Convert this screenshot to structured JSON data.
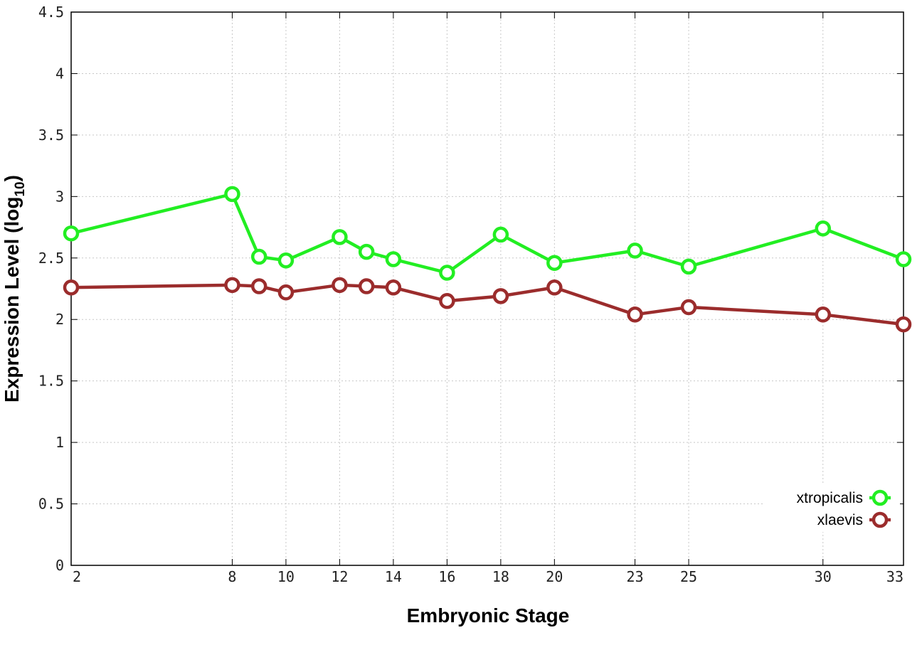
{
  "chart_data": {
    "type": "line",
    "title": "",
    "xlabel": "Embryonic Stage",
    "ylabel_main": "Expression Level (log",
    "ylabel_sub": "10",
    "ylabel_close": ")",
    "xlim": [
      2,
      33
    ],
    "ylim": [
      0,
      4.5
    ],
    "x_ticks": [
      2,
      8,
      10,
      12,
      14,
      16,
      18,
      20,
      23,
      25,
      30,
      33
    ],
    "x_tick_labels": [
      "2",
      "8",
      "10",
      "12",
      "14",
      "16",
      "18",
      "20",
      "23",
      "25",
      "30",
      "33"
    ],
    "y_ticks": [
      0,
      0.5,
      1,
      1.5,
      2,
      2.5,
      3,
      3.5,
      4,
      4.5
    ],
    "y_tick_labels": [
      "0",
      "0.5",
      "1",
      "1.5",
      "2",
      "2.5",
      "3",
      "3.5",
      "4",
      "4.5"
    ],
    "grid": true,
    "legend_position": "bottom-right",
    "x": [
      2,
      8,
      9,
      10,
      12,
      13,
      14,
      16,
      18,
      20,
      23,
      25,
      30,
      33
    ],
    "series": [
      {
        "name": "xtropicalis",
        "color": "#22ee22",
        "values": [
          2.7,
          3.02,
          2.51,
          2.48,
          2.67,
          2.55,
          2.49,
          2.38,
          2.69,
          2.46,
          2.56,
          2.43,
          2.74,
          2.49
        ]
      },
      {
        "name": "xlaevis",
        "color": "#9b2c2c",
        "values": [
          2.26,
          2.28,
          2.27,
          2.22,
          2.28,
          2.27,
          2.26,
          2.15,
          2.19,
          2.26,
          2.04,
          2.1,
          2.04,
          1.96
        ]
      }
    ]
  }
}
